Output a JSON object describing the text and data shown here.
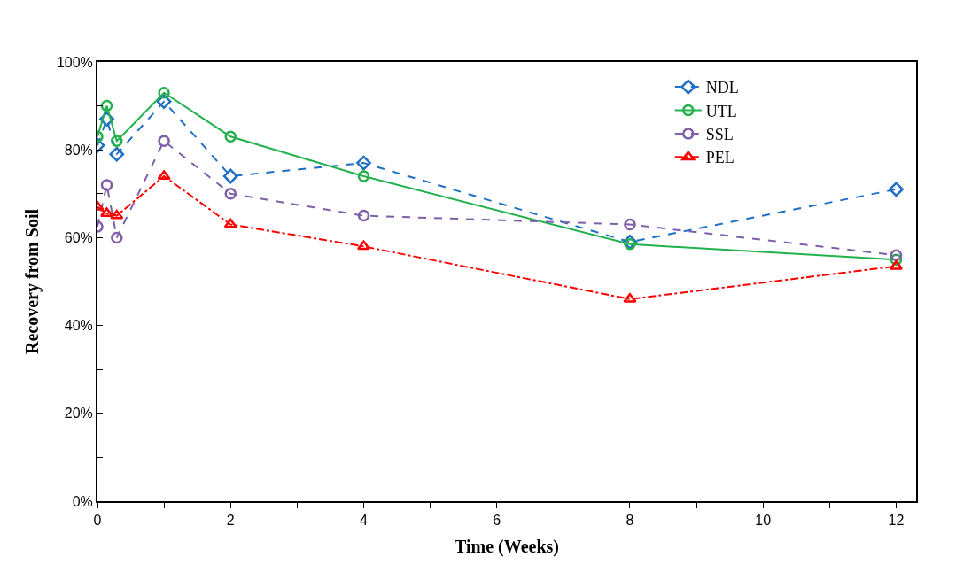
{
  "chart_data": {
    "type": "line",
    "xlabel": "Time (Weeks)",
    "ylabel": "Recovery from Soil",
    "x": [
      0,
      0.14,
      0.29,
      1,
      2,
      4,
      8,
      12
    ],
    "series": [
      {
        "name": "NDL",
        "color": "#1f6fc5",
        "marker": "diamond",
        "line_style": "dashed",
        "values": [
          81,
          87,
          79,
          91,
          74,
          77,
          59,
          71
        ]
      },
      {
        "name": "UTL",
        "color": "#22b14c",
        "marker": "circle",
        "line_style": "solid",
        "values": [
          83,
          90,
          82,
          93,
          83,
          74,
          58.5,
          55
        ]
      },
      {
        "name": "SSL",
        "color": "#7f5faa",
        "marker": "circle",
        "line_style": "dashed",
        "values": [
          62.5,
          72,
          60,
          82,
          70,
          65,
          63,
          56
        ]
      },
      {
        "name": "PEL",
        "color": "#ff0000",
        "marker": "triangle",
        "line_style": "dashdot",
        "values": [
          67,
          65.5,
          65,
          74,
          63,
          58,
          46,
          53.5
        ]
      }
    ],
    "xlim": [
      0,
      12.3
    ],
    "xticks": [
      0,
      2,
      4,
      6,
      8,
      10,
      12
    ],
    "ylim": [
      0,
      100
    ],
    "yticks": [
      {
        "value": 0,
        "label": "0%"
      },
      {
        "value": 20,
        "label": "20%"
      },
      {
        "value": 40,
        "label": "40%"
      },
      {
        "value": 60,
        "label": "60%"
      },
      {
        "value": 80,
        "label": "80%"
      },
      {
        "value": 100,
        "label": "100%"
      }
    ],
    "legend": "top right"
  }
}
